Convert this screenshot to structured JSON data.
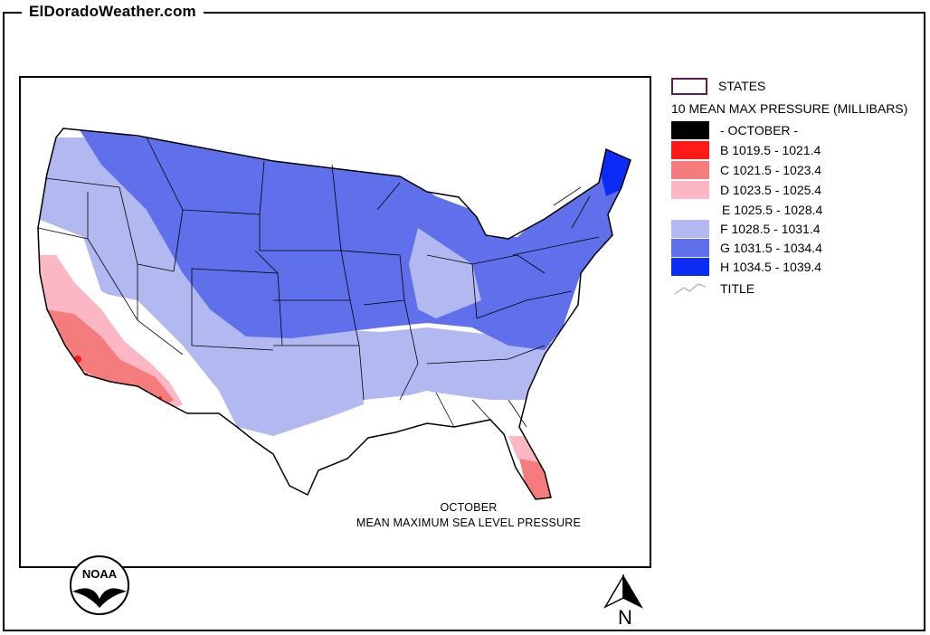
{
  "site": {
    "title": "ElDoradoWeather.com"
  },
  "legend": {
    "states_label": "STATES",
    "heading": "10 MEAN MAX PRESSURE (MILLIBARS)",
    "items": [
      {
        "label": "- OCTOBER -",
        "color": "#000000"
      },
      {
        "label": "B 1019.5 - 1021.4",
        "color": "#ff1a1a"
      },
      {
        "label": "C 1021.5 - 1023.4",
        "color": "#f47c7c"
      },
      {
        "label": "D 1023.5 - 1025.4",
        "color": "#fbb7c3"
      },
      {
        "label": "E 1025.5 - 1028.4",
        "color": "#ffffff"
      },
      {
        "label": "F 1028.5 - 1031.4",
        "color": "#b2b8f0"
      },
      {
        "label": "G 1031.5 - 1034.4",
        "color": "#5f70ea"
      },
      {
        "label": "H 1034.5 - 1039.4",
        "color": "#0a2cf5"
      }
    ],
    "title_label": "TITLE"
  },
  "map": {
    "caption_line1": "OCTOBER",
    "caption_line2": "MEAN MAXIMUM SEA LEVEL PRESSURE",
    "logo_text": "NOAA",
    "north_label": "N",
    "regions": [
      {
        "name": "west-coast-light",
        "category": "F"
      },
      {
        "name": "northern-tier-blue",
        "category": "G"
      },
      {
        "name": "maine-deep-blue",
        "category": "H"
      },
      {
        "name": "california-pink",
        "category": "D"
      },
      {
        "name": "california-salmon",
        "category": "C"
      },
      {
        "name": "southern-california-red",
        "category": "B"
      },
      {
        "name": "florida-pink",
        "category": "D"
      },
      {
        "name": "florida-salmon",
        "category": "C"
      },
      {
        "name": "southwest-white",
        "category": "E"
      },
      {
        "name": "southeast-white",
        "category": "E"
      }
    ]
  }
}
